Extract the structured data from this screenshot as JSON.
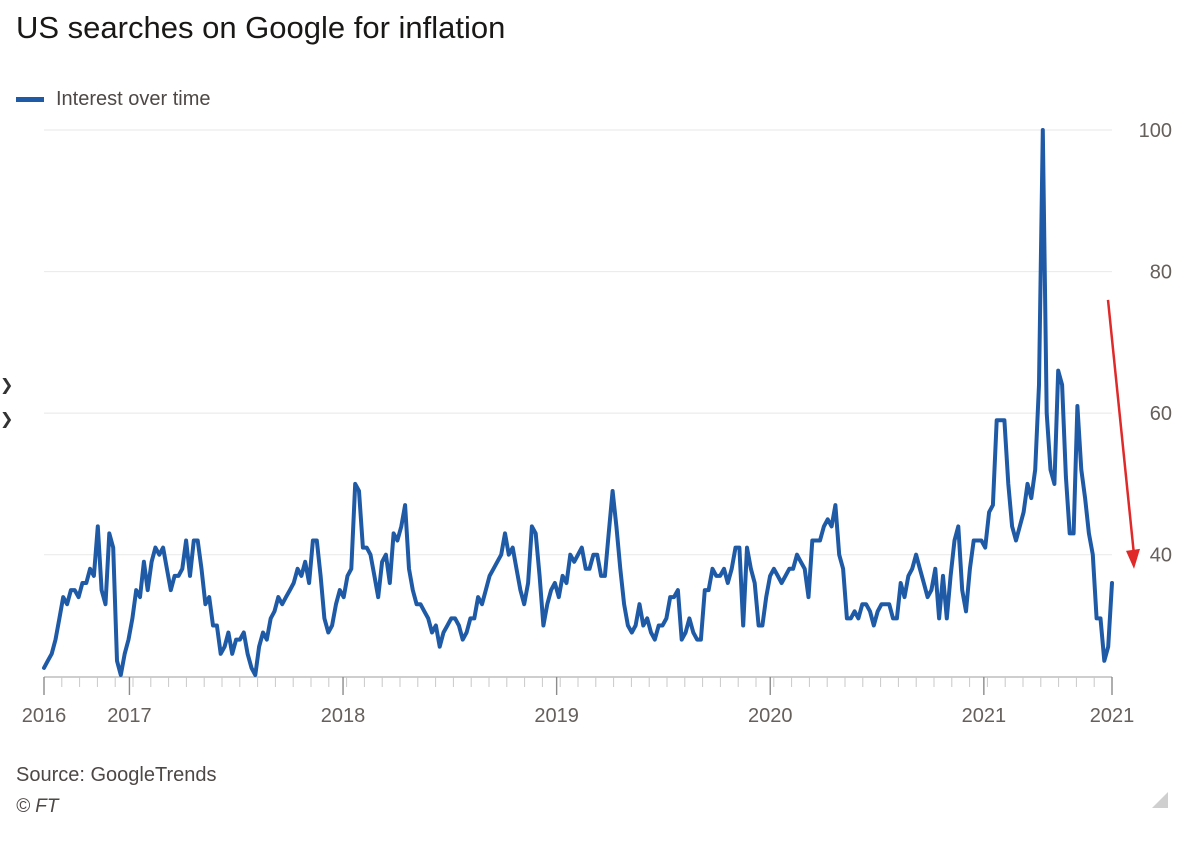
{
  "chart_data": {
    "type": "line",
    "title": "US searches on Google for inflation",
    "legend": "Interest over time",
    "legend_position": "top-left",
    "source": "Source: GoogleTrends",
    "copyright": "© FT",
    "xlabel": "",
    "ylabel": "",
    "y_axis_side": "right",
    "ylim": [
      23,
      100
    ],
    "y_ticks": [
      40,
      60,
      80,
      100
    ],
    "x_range": [
      2016.0,
      2021.0
    ],
    "x_tick_labels": [
      {
        "label": "2016",
        "x": 2016.0
      },
      {
        "label": "2017",
        "x": 2016.4
      },
      {
        "label": "2018",
        "x": 2017.4
      },
      {
        "label": "2019",
        "x": 2018.4
      },
      {
        "label": "2020",
        "x": 2019.4
      },
      {
        "label": "2021",
        "x": 2020.4
      },
      {
        "label": "2021",
        "x": 2021.0
      }
    ],
    "series": [
      {
        "name": "Interest over time",
        "color": "#1f5aa6",
        "values": [
          24,
          25,
          26,
          28,
          31,
          34,
          33,
          35,
          35,
          34,
          36,
          36,
          38,
          37,
          44,
          35,
          33,
          43,
          41,
          25,
          23,
          26,
          28,
          31,
          35,
          34,
          39,
          35,
          39,
          41,
          40,
          41,
          38,
          35,
          37,
          37,
          38,
          42,
          37,
          42,
          42,
          38,
          33,
          34,
          30,
          30,
          26,
          27,
          29,
          26,
          28,
          28,
          29,
          26,
          24,
          23,
          27,
          29,
          28,
          31,
          32,
          34,
          33,
          34,
          35,
          36,
          38,
          37,
          39,
          36,
          42,
          42,
          37,
          31,
          29,
          30,
          33,
          35,
          34,
          37,
          38,
          50,
          49,
          41,
          41,
          40,
          37,
          34,
          39,
          40,
          36,
          43,
          42,
          44,
          47,
          38,
          35,
          33,
          33,
          32,
          31,
          29,
          30,
          27,
          29,
          30,
          31,
          31,
          30,
          28,
          29,
          31,
          31,
          34,
          33,
          35,
          37,
          38,
          39,
          40,
          43,
          40,
          41,
          38,
          35,
          33,
          36,
          44,
          43,
          37,
          30,
          33,
          35,
          36,
          34,
          37,
          36,
          40,
          39,
          40,
          41,
          38,
          38,
          40,
          40,
          37,
          37,
          43,
          49,
          44,
          38,
          33,
          30,
          29,
          30,
          33,
          30,
          31,
          29,
          28,
          30,
          30,
          31,
          34,
          34,
          35,
          28,
          29,
          31,
          29,
          28,
          28,
          35,
          35,
          38,
          37,
          37,
          38,
          36,
          38,
          41,
          41,
          30,
          41,
          38,
          36,
          30,
          30,
          34,
          37,
          38,
          37,
          36,
          37,
          38,
          38,
          40,
          39,
          38,
          34,
          42,
          42,
          42,
          44,
          45,
          44,
          47,
          40,
          38,
          31,
          31,
          32,
          31,
          33,
          33,
          32,
          30,
          32,
          33,
          33,
          33,
          31,
          31,
          36,
          34,
          37,
          38,
          40,
          38,
          36,
          34,
          35,
          38,
          31,
          37,
          31,
          37,
          42,
          44,
          35,
          32,
          38,
          42,
          42,
          42,
          41,
          46,
          47,
          59,
          59,
          59,
          50,
          44,
          42,
          44,
          46,
          50,
          48,
          52,
          64,
          100,
          60,
          52,
          50,
          66,
          64,
          51,
          43,
          43,
          61,
          52,
          48,
          43,
          40,
          31,
          31,
          25,
          27,
          36
        ]
      }
    ],
    "annotation": {
      "type": "arrow",
      "color": "#e02a2a",
      "from_value": 76,
      "to_value": 38
    }
  },
  "edge_marks": [
    "❯",
    "❯"
  ]
}
